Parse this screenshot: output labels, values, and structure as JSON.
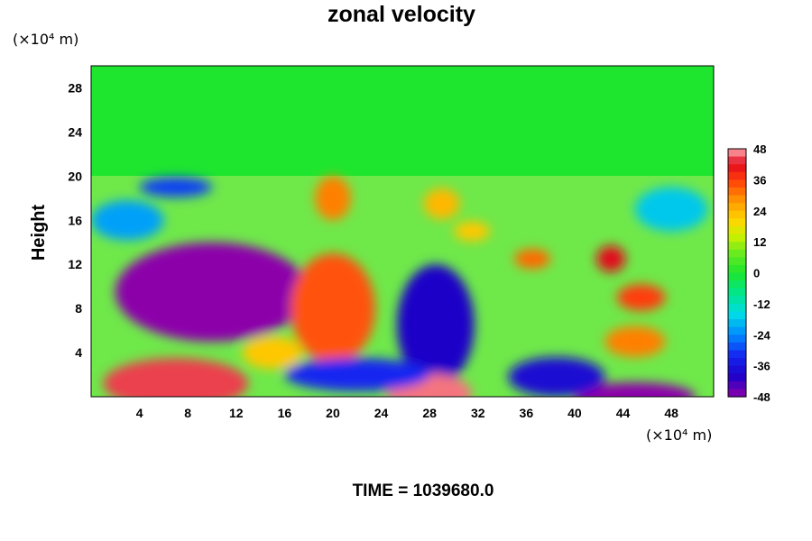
{
  "chart_data": {
    "type": "heatmap",
    "title": "zonal velocity",
    "ylabel": "Height",
    "xlabel": "",
    "x_unit_label": "(×10⁴ m)",
    "y_unit_label": "(×10⁴ m)",
    "time_label": "TIME = 1039680.0",
    "xlim": [
      0,
      51.5
    ],
    "ylim": [
      0,
      30
    ],
    "x_ticks": [
      4,
      8,
      12,
      16,
      20,
      24,
      28,
      32,
      36,
      40,
      44,
      48
    ],
    "y_ticks": [
      4,
      8,
      12,
      16,
      20,
      24,
      28
    ],
    "colorbar": {
      "min": -48,
      "max": 48,
      "ticks": [
        48,
        36,
        24,
        12,
        0,
        -12,
        -24,
        -36,
        -48
      ]
    },
    "field_features": [
      {
        "x": 10,
        "y": 9.5,
        "value": -48,
        "rx": 8,
        "ry": 4.5
      },
      {
        "x": 7.5,
        "y": 8.5,
        "value": -52,
        "rx": 4.5,
        "ry": 2.2
      },
      {
        "x": 7,
        "y": 1.2,
        "value": 44,
        "rx": 6,
        "ry": 2.3
      },
      {
        "x": 28.5,
        "y": 6.5,
        "value": -40,
        "rx": 3.2,
        "ry": 5.5
      },
      {
        "x": 28,
        "y": 0.3,
        "value": 46,
        "rx": 3.5,
        "ry": 1.8
      },
      {
        "x": 20,
        "y": 8,
        "value": 34,
        "rx": 3.5,
        "ry": 5
      },
      {
        "x": 20,
        "y": 18,
        "value": 30,
        "rx": 1.5,
        "ry": 2
      },
      {
        "x": 45,
        "y": 0,
        "value": -50,
        "rx": 5,
        "ry": 1.3
      },
      {
        "x": 38.5,
        "y": 1.8,
        "value": -38,
        "rx": 4,
        "ry": 1.8
      },
      {
        "x": 22,
        "y": 2,
        "value": -32,
        "rx": 6,
        "ry": 1.5
      },
      {
        "x": 43,
        "y": 12.5,
        "value": 42,
        "rx": 1.2,
        "ry": 1.2
      },
      {
        "x": 45.5,
        "y": 9,
        "value": 36,
        "rx": 2,
        "ry": 1.2
      },
      {
        "x": 36.5,
        "y": 12.5,
        "value": 32,
        "rx": 1.5,
        "ry": 0.9
      },
      {
        "x": 45,
        "y": 5,
        "value": 30,
        "rx": 2.5,
        "ry": 1.4
      },
      {
        "x": 29,
        "y": 17.5,
        "value": 24,
        "rx": 1.5,
        "ry": 1.4
      },
      {
        "x": 31.5,
        "y": 15,
        "value": 22,
        "rx": 1.5,
        "ry": 0.9
      },
      {
        "x": 3,
        "y": 16,
        "value": -22,
        "rx": 3,
        "ry": 1.8
      },
      {
        "x": 7,
        "y": 19,
        "value": -30,
        "rx": 3,
        "ry": 0.9
      },
      {
        "x": 48,
        "y": 17,
        "value": -18,
        "rx": 3,
        "ry": 2
      },
      {
        "x": 15,
        "y": 4,
        "value": 22,
        "rx": 2.5,
        "ry": 1.5
      }
    ]
  }
}
